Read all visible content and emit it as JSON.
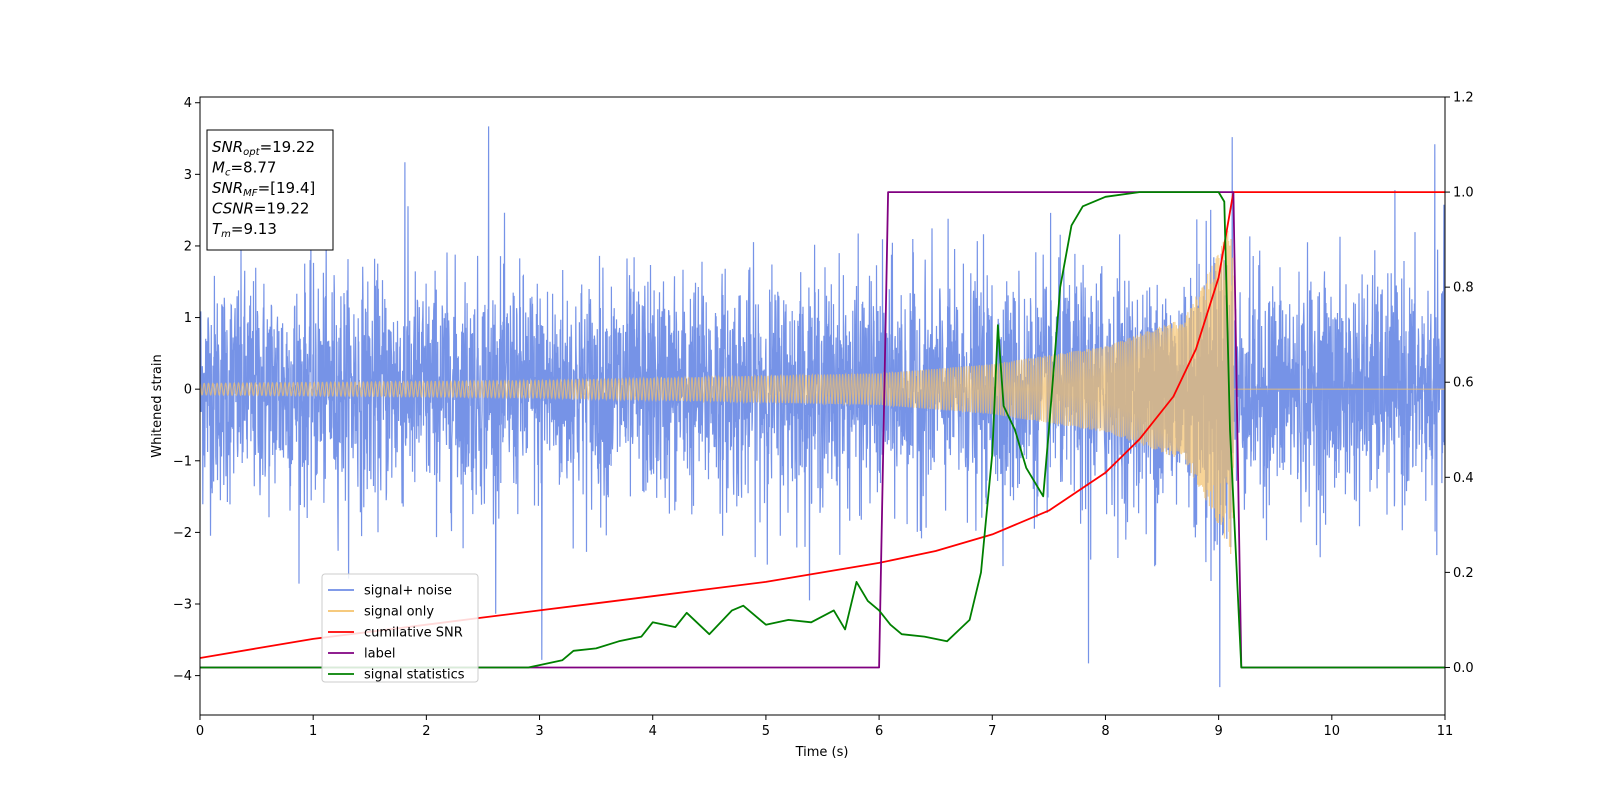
{
  "chart_data": {
    "type": "line",
    "title": "",
    "xlabel": "Time (s)",
    "ylabel_left": "Whitened strain",
    "ylabel_right": "",
    "xlim": [
      0,
      11
    ],
    "ylim_left": [
      -4.55,
      4.08
    ],
    "ylim_right": [
      -0.1,
      1.2
    ],
    "x_ticks": [
      "0",
      "1",
      "2",
      "3",
      "4",
      "5",
      "6",
      "7",
      "8",
      "9",
      "10",
      "11"
    ],
    "y_left_ticks": [
      "−4",
      "−3",
      "−2",
      "−1",
      "0",
      "1",
      "2",
      "3",
      "4"
    ],
    "y_right_ticks": [
      "0.0",
      "0.2",
      "0.4",
      "0.6",
      "0.8",
      "1.0",
      "1.2"
    ],
    "grid": false,
    "legend_position": "lower-left",
    "info_box": {
      "lines": [
        {
          "base": "SNR",
          "sub": "opt",
          "value": "=19.22"
        },
        {
          "base": "M",
          "sub": "c",
          "value": "=8.77"
        },
        {
          "base": "SNR",
          "sub": "MF",
          "value": "=[19.4]"
        },
        {
          "base": "CSNR",
          "sub": "",
          "value": "=19.22"
        },
        {
          "base": "T",
          "sub": "m",
          "value": "=9.13"
        }
      ]
    },
    "series": [
      {
        "name": "signal+ noise",
        "axis": "left",
        "color": "#6f8de6",
        "description_kind": "noise",
        "noise_std": 0.9,
        "peaks": [
          [
            2.55,
            3.67
          ],
          [
            3.02,
            -3.78
          ],
          [
            9.01,
            -4.16
          ],
          [
            9.12,
            3.52
          ],
          [
            7.85,
            -3.83
          ],
          [
            10.91,
            3.42
          ],
          [
            1.81,
            3.17
          ]
        ]
      },
      {
        "name": "signal only",
        "axis": "left",
        "color": "#f5c26b",
        "description_kind": "chirp",
        "end_time": 9.13,
        "amplitude_at": [
          [
            0,
            0.08
          ],
          [
            3,
            0.12
          ],
          [
            6,
            0.22
          ],
          [
            7,
            0.35
          ],
          [
            8,
            0.6
          ],
          [
            8.7,
            1.0
          ],
          [
            9.0,
            1.9
          ],
          [
            9.13,
            2.4
          ]
        ]
      },
      {
        "name": "cumilative SNR",
        "axis": "right",
        "color": "#ff0000",
        "x": [
          0,
          0.5,
          1,
          1.5,
          2,
          2.5,
          3,
          3.5,
          4,
          4.5,
          5,
          5.5,
          6,
          6.5,
          7,
          7.5,
          8,
          8.3,
          8.6,
          8.8,
          9.0,
          9.13,
          11
        ],
        "y": [
          0.02,
          0.04,
          0.06,
          0.075,
          0.09,
          0.105,
          0.12,
          0.135,
          0.15,
          0.165,
          0.18,
          0.2,
          0.22,
          0.245,
          0.28,
          0.33,
          0.41,
          0.48,
          0.57,
          0.67,
          0.82,
          1.0,
          1.0
        ]
      },
      {
        "name": "label",
        "axis": "right",
        "color": "#800080",
        "x": [
          0,
          6.0,
          6.08,
          9.13,
          9.2,
          11
        ],
        "y": [
          0.0,
          0.0,
          1.0,
          1.0,
          0.0,
          0.0
        ]
      },
      {
        "name": "signal statistics",
        "axis": "right",
        "color": "#008000",
        "x": [
          0,
          1,
          2,
          2.9,
          3.0,
          3.2,
          3.3,
          3.5,
          3.7,
          3.9,
          4.0,
          4.2,
          4.3,
          4.5,
          4.7,
          4.8,
          5.0,
          5.2,
          5.4,
          5.6,
          5.7,
          5.8,
          5.9,
          6.0,
          6.1,
          6.2,
          6.4,
          6.6,
          6.8,
          6.9,
          7.0,
          7.05,
          7.1,
          7.2,
          7.3,
          7.45,
          7.5,
          7.6,
          7.7,
          7.8,
          8.0,
          8.3,
          8.6,
          9.0,
          9.05,
          9.1,
          9.2,
          11
        ],
        "y": [
          0.0,
          0.0,
          0.0,
          0.0,
          0.005,
          0.015,
          0.035,
          0.04,
          0.055,
          0.065,
          0.095,
          0.085,
          0.115,
          0.07,
          0.12,
          0.13,
          0.09,
          0.1,
          0.095,
          0.12,
          0.08,
          0.18,
          0.14,
          0.12,
          0.09,
          0.07,
          0.065,
          0.055,
          0.1,
          0.2,
          0.45,
          0.72,
          0.55,
          0.5,
          0.42,
          0.36,
          0.5,
          0.8,
          0.93,
          0.97,
          0.99,
          1.0,
          1.0,
          1.0,
          0.98,
          0.5,
          0.0,
          0.0
        ]
      }
    ]
  }
}
